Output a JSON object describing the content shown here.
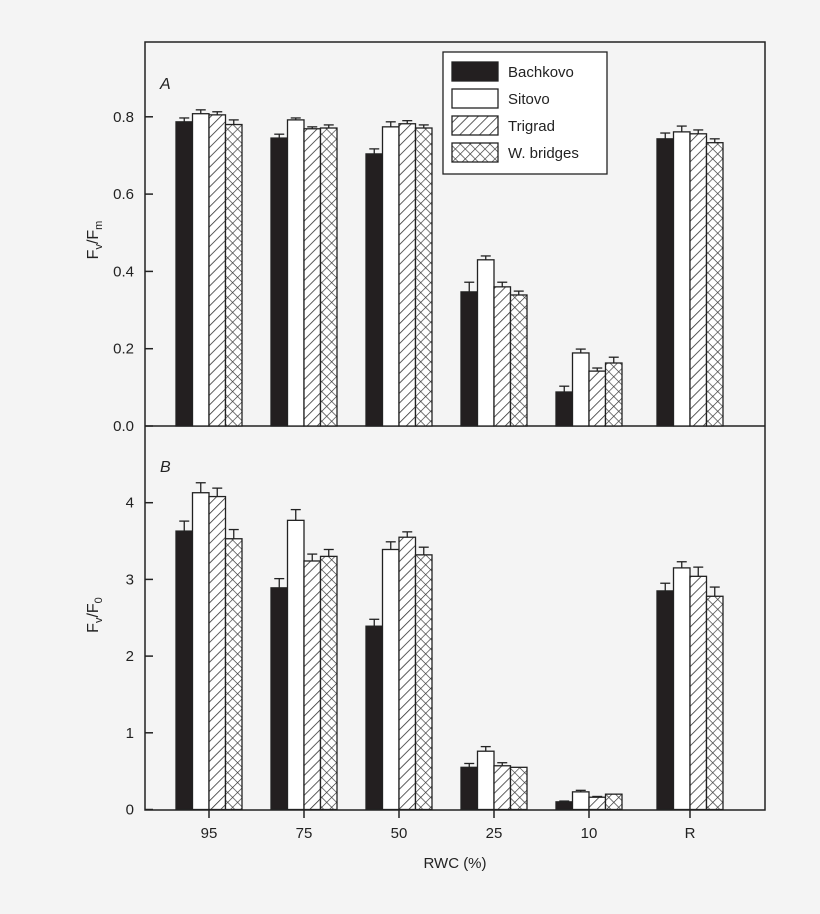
{
  "chart_data": [
    {
      "type": "bar",
      "panel_label": "A",
      "ylabel_main": "F",
      "ylabel_sub1": "v",
      "ylabel_mid": "/F",
      "ylabel_sub2": "m",
      "ylim": [
        0,
        1.0
      ],
      "yticks": [
        "0.0",
        "0.2",
        "0.4",
        "0.6",
        "0.8"
      ],
      "categories": [
        "95",
        "75",
        "50",
        "25",
        "10",
        "R"
      ],
      "series": [
        {
          "name": "Bachkovo",
          "values": [
            0.787,
            0.745,
            0.704,
            0.347,
            0.088,
            0.743
          ],
          "errors": [
            0.01,
            0.01,
            0.013,
            0.025,
            0.015,
            0.015
          ]
        },
        {
          "name": "Sitovo",
          "values": [
            0.808,
            0.792,
            0.774,
            0.43,
            0.189,
            0.761
          ],
          "errors": [
            0.01,
            0.005,
            0.013,
            0.01,
            0.01,
            0.015
          ]
        },
        {
          "name": "Trigrad",
          "values": [
            0.805,
            0.769,
            0.782,
            0.36,
            0.142,
            0.756
          ],
          "errors": [
            0.008,
            0.005,
            0.008,
            0.012,
            0.008,
            0.01
          ]
        },
        {
          "name": "W. bridges",
          "values": [
            0.78,
            0.771,
            0.771,
            0.339,
            0.163,
            0.733
          ],
          "errors": [
            0.012,
            0.008,
            0.008,
            0.01,
            0.015,
            0.01
          ]
        }
      ],
      "legend": "top-right"
    },
    {
      "type": "bar",
      "panel_label": "B",
      "ylabel_main": "F",
      "ylabel_sub1": "v",
      "ylabel_mid": "/F",
      "ylabel_sub2": "0",
      "ylim": [
        0,
        5.0
      ],
      "yticks": [
        "0",
        "1",
        "2",
        "3",
        "4"
      ],
      "xlabel": "RWC (%)",
      "categories": [
        "95",
        "75",
        "50",
        "25",
        "10",
        "R"
      ],
      "series": [
        {
          "name": "Bachkovo",
          "values": [
            3.63,
            2.89,
            2.39,
            0.55,
            0.1,
            2.85
          ],
          "errors": [
            0.13,
            0.12,
            0.09,
            0.05,
            0.01,
            0.1
          ]
        },
        {
          "name": "Sitovo",
          "values": [
            4.13,
            3.77,
            3.39,
            0.76,
            0.23,
            3.15
          ],
          "errors": [
            0.13,
            0.14,
            0.1,
            0.06,
            0.02,
            0.08
          ]
        },
        {
          "name": "Trigrad",
          "values": [
            4.08,
            3.24,
            3.55,
            0.57,
            0.16,
            3.04
          ],
          "errors": [
            0.11,
            0.09,
            0.07,
            0.04,
            0.01,
            0.12
          ]
        },
        {
          "name": "W. bridges",
          "values": [
            3.53,
            3.3,
            3.32,
            0.55,
            0.2,
            2.78
          ],
          "errors": [
            0.12,
            0.09,
            0.1,
            0.0,
            0.0,
            0.12
          ]
        }
      ]
    }
  ],
  "colors": {
    "Bachkovo": "#231f20",
    "Sitovo": "#ffffff",
    "Trigrad": "hatch-diagonal",
    "W. bridges": "hatch-cross",
    "background": "#f4f4f4"
  }
}
